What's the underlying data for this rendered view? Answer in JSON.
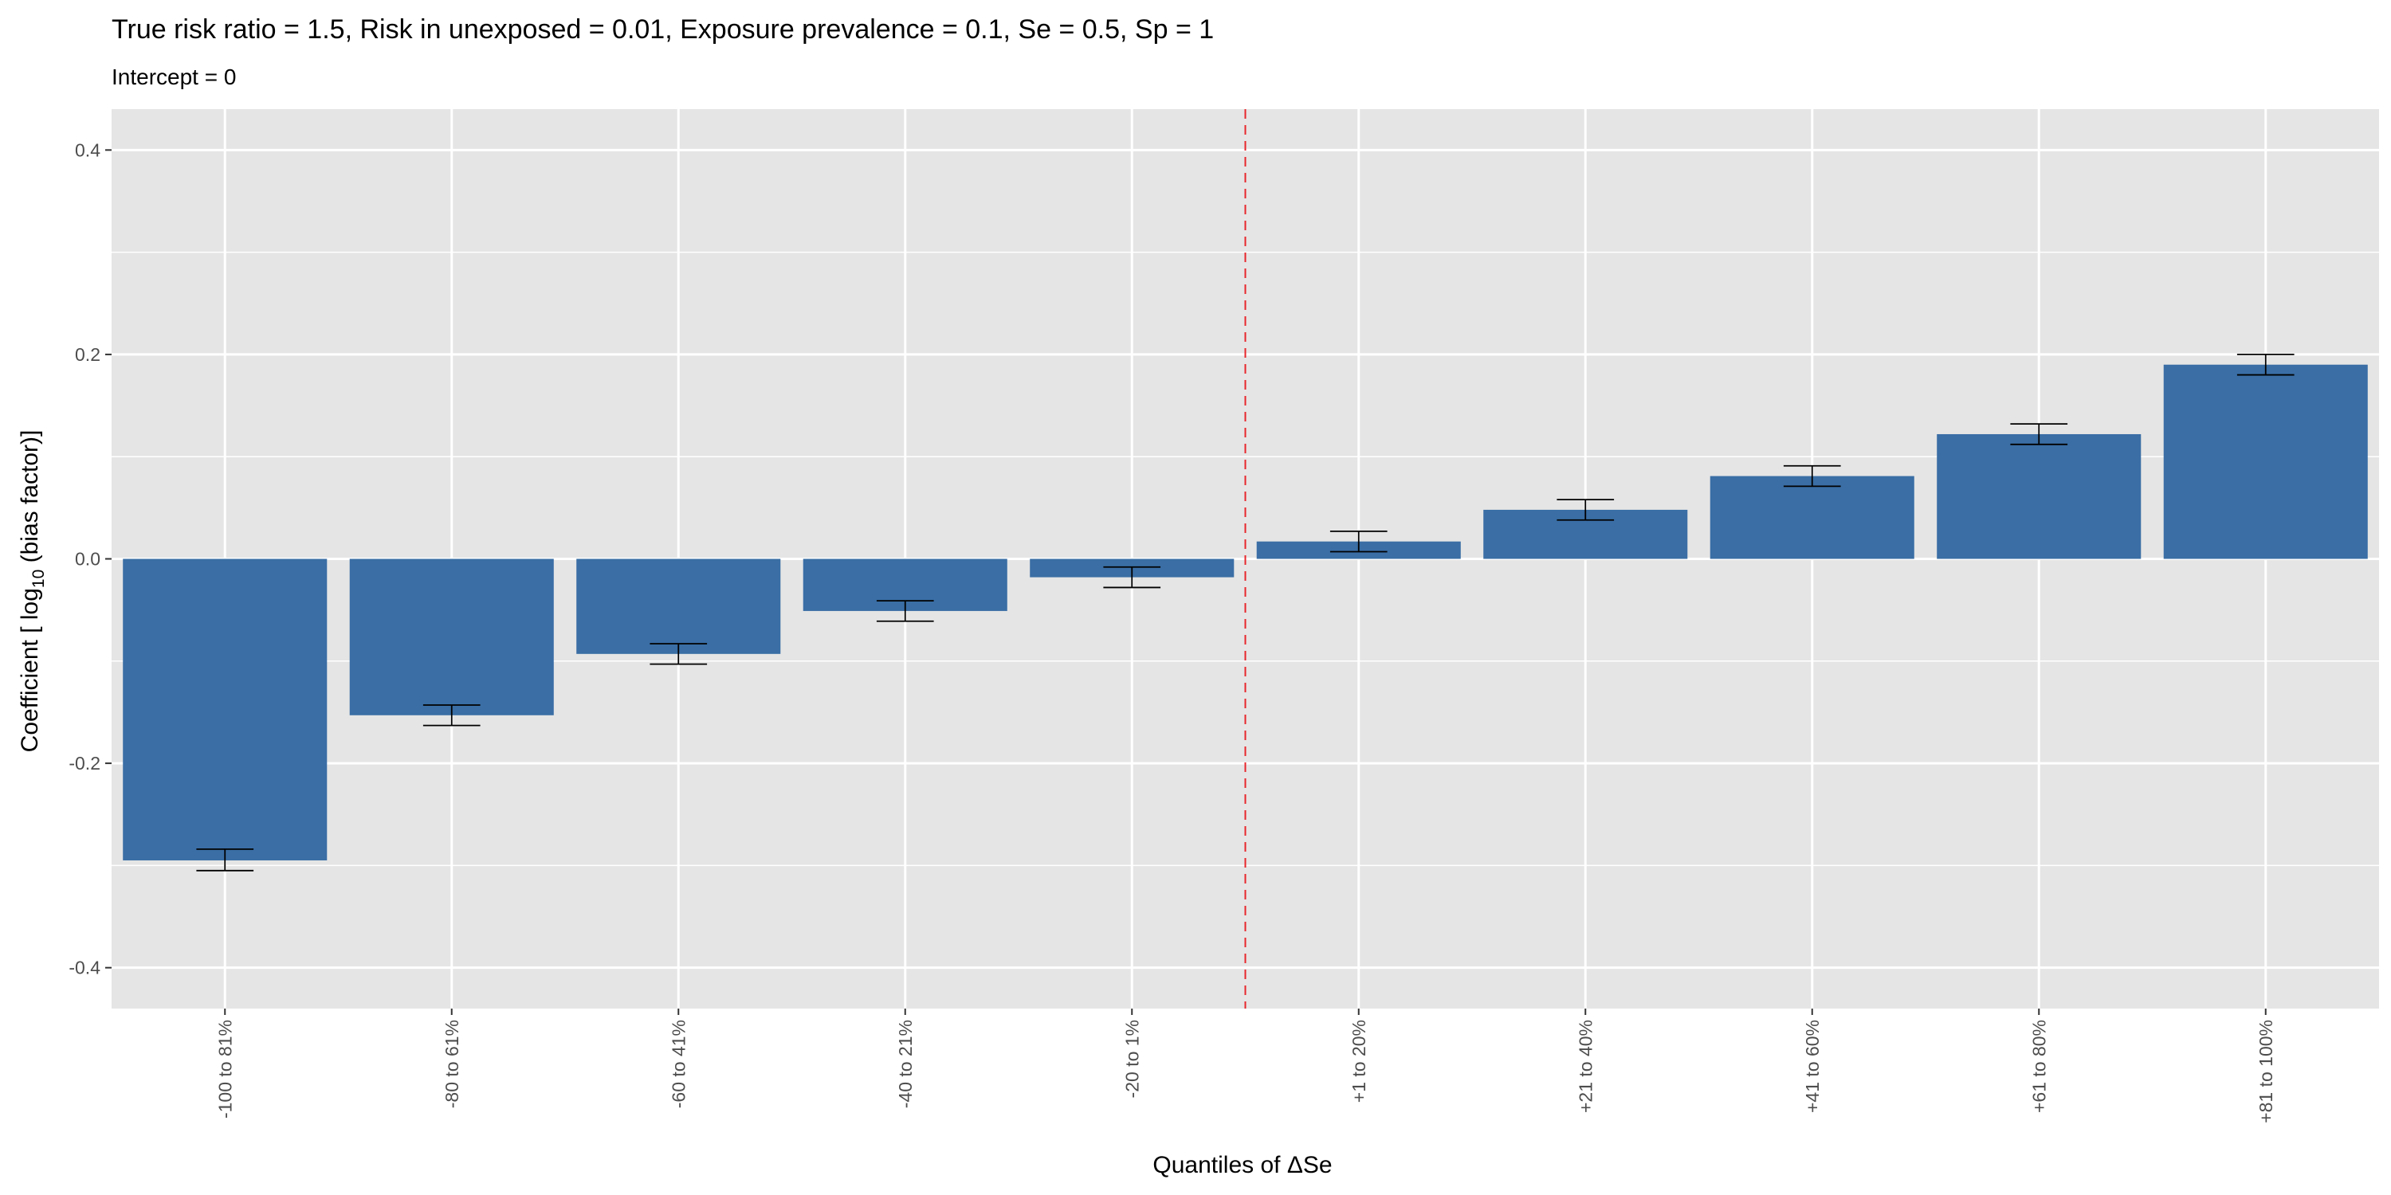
{
  "chart_data": {
    "type": "bar",
    "title": "True risk ratio = 1.5, Risk in unexposed = 0.01, Exposure prevalence = 0.1, Se = 0.5, Sp = 1",
    "subtitle": "Intercept = 0",
    "xlabel": "Quantiles of ΔSe",
    "ylabel": {
      "prefix": "Coefficient [ log",
      "subscript": "10",
      "suffix": " (bias factor)]"
    },
    "categories": [
      "-100 to 81%",
      "-80 to 61%",
      "-60 to 41%",
      "-40 to 21%",
      "-20 to 1%",
      "+1 to 20%",
      "+21 to 40%",
      "+41 to 60%",
      "+61 to 80%",
      "+81 to 100%"
    ],
    "values": [
      -0.295,
      -0.153,
      -0.093,
      -0.051,
      -0.018,
      0.017,
      0.048,
      0.081,
      0.122,
      0.19
    ],
    "error_lower": [
      -0.305,
      -0.163,
      -0.103,
      -0.061,
      -0.028,
      0.007,
      0.038,
      0.071,
      0.112,
      0.18
    ],
    "error_upper": [
      -0.284,
      -0.143,
      -0.083,
      -0.041,
      -0.008,
      0.027,
      0.058,
      0.091,
      0.132,
      0.2
    ],
    "ylim": [
      -0.44,
      0.44
    ],
    "yticks": [
      -0.4,
      -0.2,
      0.0,
      0.2,
      0.4
    ],
    "ytick_labels": [
      "-0.4",
      "-0.2",
      "0.0",
      "0.2",
      "0.4"
    ],
    "reference_line": {
      "between_categories": [
        4,
        5
      ],
      "style": "dashed"
    },
    "grid": true,
    "colors": {
      "bar": "#3a6ea5",
      "panel": "#e5e5e5",
      "grid": "#ffffff",
      "reference_line": "#e8262b",
      "error_bar": "#000000"
    }
  }
}
